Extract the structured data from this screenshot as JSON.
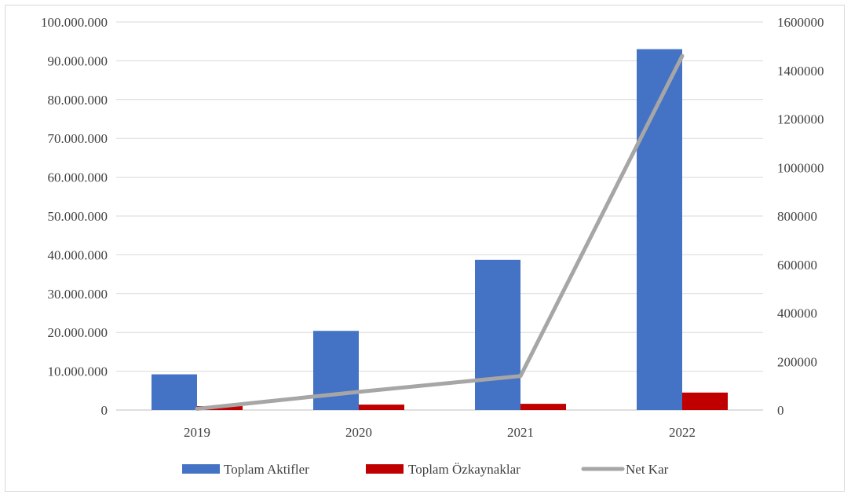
{
  "chart_data": {
    "type": "bar",
    "categories": [
      "2019",
      "2020",
      "2021",
      "2022"
    ],
    "series": [
      {
        "name": "Toplam Aktifler",
        "type": "bar",
        "axis": "left",
        "color": "#4472C4",
        "values": [
          9200000,
          20400000,
          38700000,
          93000000
        ]
      },
      {
        "name": "Toplam Özkaynaklar",
        "type": "bar",
        "axis": "left",
        "color": "#C00000",
        "values": [
          1000000,
          1400000,
          1600000,
          4500000
        ]
      },
      {
        "name": "Net Kar",
        "type": "line",
        "axis": "right",
        "color": "#A6A6A6",
        "values": [
          5000,
          75000,
          140000,
          1460000
        ]
      }
    ],
    "y_left": {
      "range": [
        0,
        100000000
      ],
      "ticks": [
        0,
        10000000,
        20000000,
        30000000,
        40000000,
        50000000,
        60000000,
        70000000,
        80000000,
        90000000,
        100000000
      ],
      "tick_labels": [
        "0",
        "10.000.000",
        "20.000.000",
        "30.000.000",
        "40.000.000",
        "50.000.000",
        "60.000.000",
        "70.000.000",
        "80.000.000",
        "90.000.000",
        "100.000.000"
      ]
    },
    "y_right": {
      "range": [
        0,
        1600000
      ],
      "ticks": [
        0,
        200000,
        400000,
        600000,
        800000,
        1000000,
        1200000,
        1400000,
        1600000
      ],
      "tick_labels": [
        "0",
        "200000",
        "400000",
        "600000",
        "800000",
        "1000000",
        "1200000",
        "1400000",
        "1600000"
      ]
    },
    "grid": true,
    "legend_position": "bottom"
  }
}
